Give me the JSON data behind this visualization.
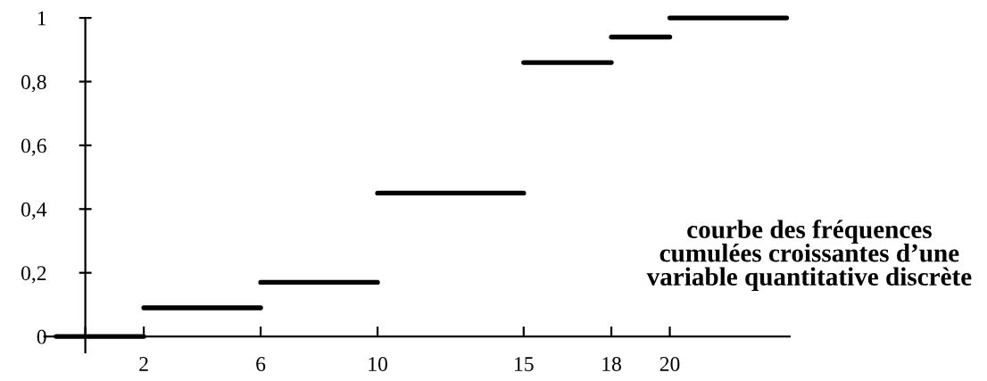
{
  "chart_data": {
    "type": "step",
    "x": [
      -1,
      2,
      6,
      10,
      15,
      18,
      20,
      24
    ],
    "values": [
      0,
      0.09,
      0.17,
      0.45,
      0.86,
      0.94,
      1,
      1
    ],
    "color": "#000000",
    "xlim": [
      -1.4,
      24.1
    ],
    "ylim": [
      -0.05,
      1
    ],
    "xticks": [
      {
        "value": 0,
        "label": null
      },
      2,
      6,
      10,
      15,
      18,
      20
    ],
    "yticks": [
      {
        "value": 0,
        "label": "0"
      },
      {
        "value": 0.2,
        "label": "0,2"
      },
      {
        "value": 0.4,
        "label": "0,4"
      },
      {
        "value": 0.6,
        "label": "0,6"
      },
      {
        "value": 0.8,
        "label": "0,8"
      },
      {
        "value": 1,
        "label": "1"
      }
    ],
    "grid": false,
    "legend": false,
    "annotations": [
      "courbe des fréquences cumulées croissantes d’une variable quantitative discrète"
    ]
  }
}
